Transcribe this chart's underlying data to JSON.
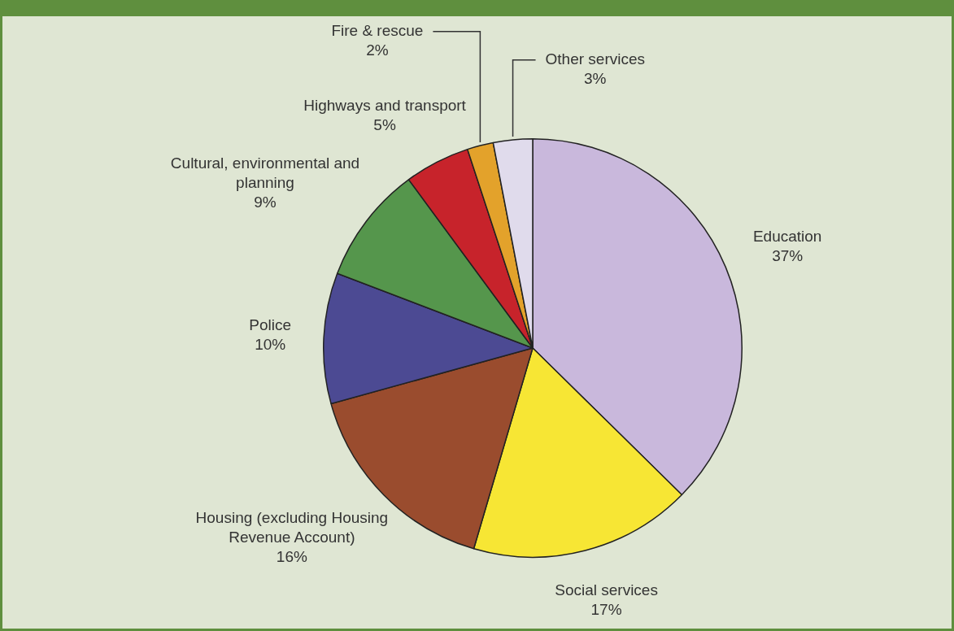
{
  "chart_data": {
    "type": "pie",
    "categories": [
      "Education",
      "Social services",
      "Housing (excluding Housing Revenue Account)",
      "Police",
      "Cultural, environmental and planning",
      "Highways and transport",
      "Fire & rescue",
      "Other services"
    ],
    "values": [
      37,
      17,
      16,
      10,
      9,
      5,
      2,
      3
    ],
    "value_labels": [
      "37%",
      "17%",
      "16%",
      "10%",
      "9%",
      "5%",
      "2%",
      "3%"
    ],
    "colors": [
      "#c9b8dc",
      "#f7e634",
      "#9a4c2e",
      "#4c4a93",
      "#55964c",
      "#c7232b",
      "#e3a22b",
      "#e0dbec"
    ],
    "legend": false
  }
}
